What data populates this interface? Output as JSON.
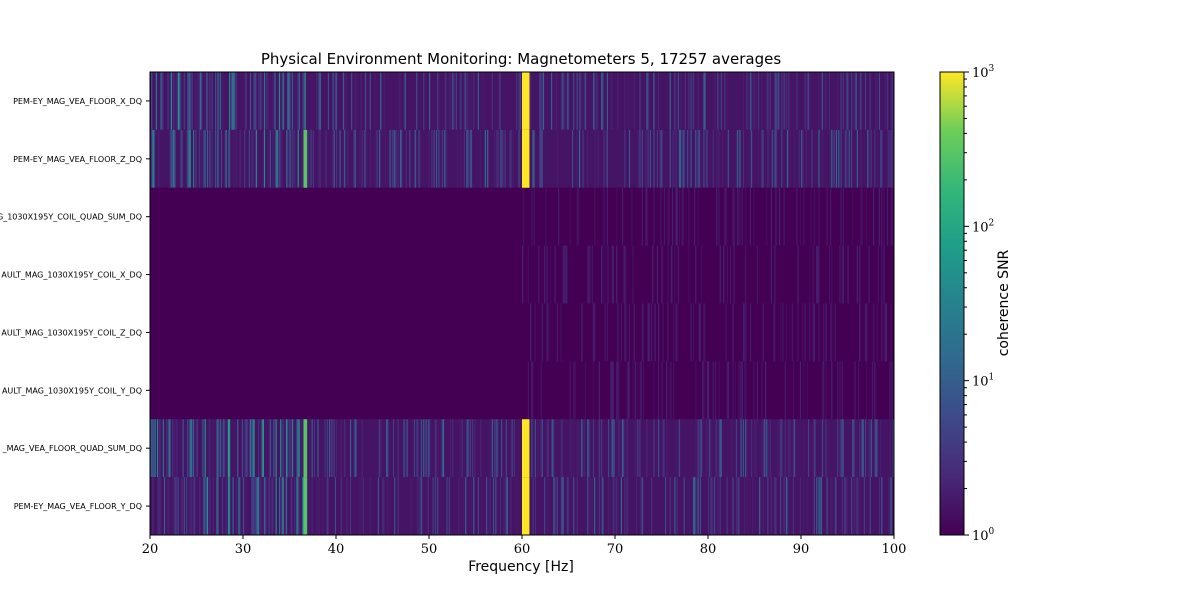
{
  "chart_data": {
    "type": "heatmap",
    "title": "Physical Environment Monitoring: Magnetometers 5, 17257 averages",
    "xlabel": "Frequency [Hz]",
    "xlim": [
      20,
      100
    ],
    "xticks": [
      20,
      30,
      40,
      50,
      60,
      70,
      80,
      90,
      100
    ],
    "rows": [
      "PEM-EY_MAG_VEA_FLOOR_X_DQ",
      "PEM-EY_MAG_VEA_FLOOR_Z_DQ",
      "G_1030X195Y_COIL_QUAD_SUM_DQ",
      "AULT_MAG_1030X195Y_COIL_X_DQ",
      "AULT_MAG_1030X195Y_COIL_Z_DQ",
      "AULT_MAG_1030X195Y_COIL_Y_DQ",
      "_MAG_VEA_FLOOR_QUAD_SUM_DQ",
      "PEM-EY_MAG_VEA_FLOOR_Y_DQ"
    ],
    "colorbar": {
      "label": "coherence SNR",
      "scale": "log",
      "range": [
        1,
        1000
      ],
      "ticks": [
        {
          "base": "10",
          "exp": "0"
        },
        {
          "base": "10",
          "exp": "1"
        },
        {
          "base": "10",
          "exp": "2"
        },
        {
          "base": "10",
          "exp": "3"
        }
      ],
      "colormap": "viridis"
    },
    "features": [
      {
        "freq_range": [
          60.0,
          60.8
        ],
        "rows": [
          0,
          1,
          6,
          7
        ],
        "snr": 1000
      },
      {
        "freq_range": [
          36.5,
          36.9
        ],
        "rows": [
          1,
          6,
          7
        ],
        "snr": 300
      }
    ],
    "active_rows": [
      0,
      1,
      6,
      7
    ],
    "quiet_rows": [
      2,
      3,
      4,
      5
    ]
  }
}
